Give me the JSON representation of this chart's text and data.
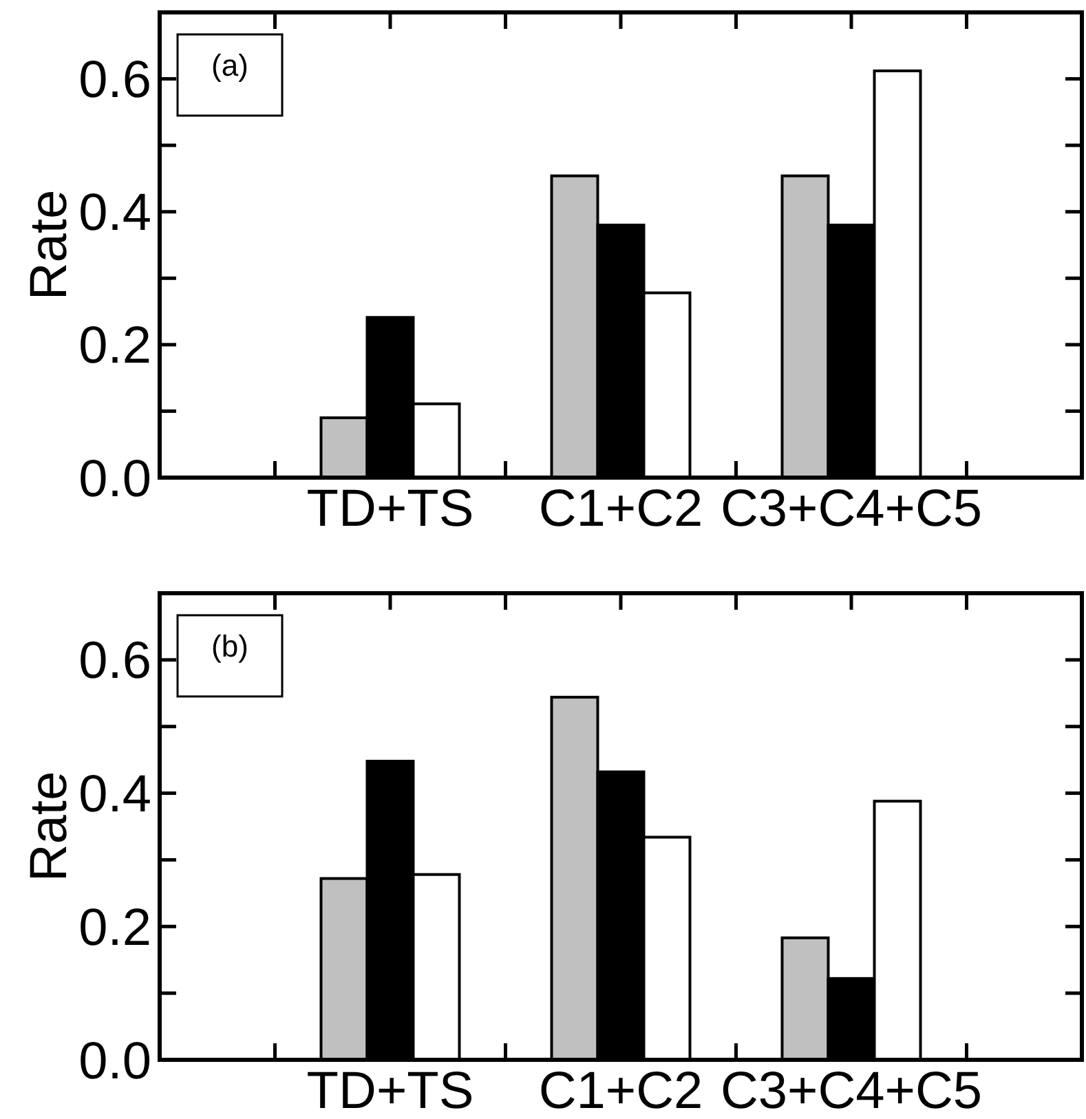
{
  "chart_data": [
    {
      "type": "bar",
      "ylabel": "Rate",
      "annotations": [
        "(a)"
      ],
      "categories": [
        null,
        "TD+TS",
        "C1+C2",
        "C3+C4+C5",
        null
      ],
      "series": [
        {
          "color": "#c0c0c0",
          "values": [
            null,
            0.09,
            0.454,
            0.454,
            null
          ]
        },
        {
          "color": "#000000",
          "values": [
            null,
            0.241,
            0.38,
            0.38,
            null
          ]
        },
        {
          "color": "#ffffff",
          "values": [
            null,
            0.111,
            0.278,
            0.612,
            null
          ]
        }
      ],
      "ylim": [
        0,
        0.7
      ],
      "yticks": [
        {
          "value": 0,
          "label": "0.0"
        },
        {
          "value": 0.1,
          "label": null
        },
        {
          "value": 0.2,
          "label": "0.2"
        },
        {
          "value": 0.3,
          "label": null
        },
        {
          "value": 0.4,
          "label": "0.4"
        },
        {
          "value": 0.5,
          "label": null
        },
        {
          "value": 0.6,
          "label": "0.6"
        }
      ]
    },
    {
      "type": "bar",
      "ylabel": "Rate",
      "annotations": [
        "(b)"
      ],
      "categories": [
        null,
        "TD+TS",
        "C1+C2",
        "C3+C4+C5",
        null
      ],
      "series": [
        {
          "color": "#c0c0c0",
          "values": [
            null,
            0.272,
            0.544,
            0.183,
            null
          ]
        },
        {
          "color": "#000000",
          "values": [
            null,
            0.448,
            0.432,
            0.122,
            null
          ]
        },
        {
          "color": "#ffffff",
          "values": [
            null,
            0.278,
            0.334,
            0.388,
            null
          ]
        }
      ],
      "ylim": [
        0,
        0.7
      ],
      "yticks": [
        {
          "value": 0,
          "label": "0.0"
        },
        {
          "value": 0.1,
          "label": null
        },
        {
          "value": 0.2,
          "label": "0.2"
        },
        {
          "value": 0.3,
          "label": null
        },
        {
          "value": 0.4,
          "label": "0.4"
        },
        {
          "value": 0.5,
          "label": null
        },
        {
          "value": 0.6,
          "label": "0.6"
        }
      ]
    }
  ]
}
